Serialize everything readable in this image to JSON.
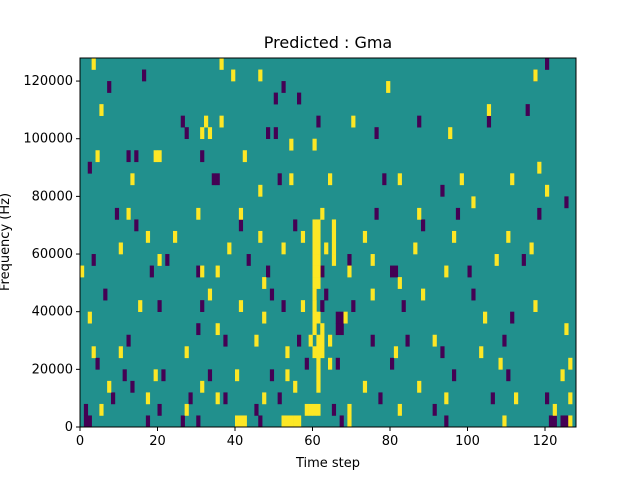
{
  "chart_data": {
    "type": "heatmap",
    "title": "Predicted : Gma",
    "xlabel": "Time step",
    "ylabel": "Frequency (Hz)",
    "xlim": [
      0,
      128
    ],
    "ylim": [
      0,
      128000
    ],
    "xticks": [
      0,
      20,
      40,
      60,
      80,
      100,
      120
    ],
    "yticks": [
      0,
      20000,
      40000,
      60000,
      80000,
      100000,
      120000
    ],
    "x_bins": 128,
    "y_bin_size": 4000,
    "grid": false,
    "colors": {
      "background": "#21908d",
      "high": "#fde725",
      "low": "#440154"
    },
    "high_cells": [
      [
        3,
        124000
      ],
      [
        36,
        124000
      ],
      [
        39,
        120000
      ],
      [
        46,
        120000
      ],
      [
        117,
        120000
      ],
      [
        32,
        104000
      ],
      [
        36,
        104000
      ],
      [
        70,
        104000
      ],
      [
        79,
        116000
      ],
      [
        105,
        108000
      ],
      [
        5,
        108000
      ],
      [
        31,
        100000
      ],
      [
        33,
        100000
      ],
      [
        60,
        96000
      ],
      [
        95,
        100000
      ],
      [
        4,
        92000
      ],
      [
        19,
        92000
      ],
      [
        20,
        92000
      ],
      [
        42,
        92000
      ],
      [
        54,
        96000
      ],
      [
        13,
        84000
      ],
      [
        46,
        80000
      ],
      [
        54,
        84000
      ],
      [
        64,
        84000
      ],
      [
        82,
        84000
      ],
      [
        98,
        84000
      ],
      [
        111,
        84000
      ],
      [
        118,
        88000
      ],
      [
        12,
        72000
      ],
      [
        30,
        72000
      ],
      [
        41,
        72000
      ],
      [
        62,
        72000
      ],
      [
        87,
        72000
      ],
      [
        101,
        76000
      ],
      [
        120,
        80000
      ],
      [
        10,
        60000
      ],
      [
        17,
        64000
      ],
      [
        24,
        64000
      ],
      [
        38,
        60000
      ],
      [
        46,
        64000
      ],
      [
        52,
        60000
      ],
      [
        57,
        64000
      ],
      [
        63,
        60000
      ],
      [
        73,
        64000
      ],
      [
        86,
        60000
      ],
      [
        96,
        64000
      ],
      [
        110,
        64000
      ],
      [
        116,
        60000
      ],
      [
        0,
        52000
      ],
      [
        20,
        56000
      ],
      [
        31,
        52000
      ],
      [
        35,
        52000
      ],
      [
        47,
        48000
      ],
      [
        60,
        56000
      ],
      [
        69,
        52000
      ],
      [
        75,
        56000
      ],
      [
        82,
        48000
      ],
      [
        94,
        52000
      ],
      [
        107,
        56000
      ],
      [
        2,
        36000
      ],
      [
        15,
        40000
      ],
      [
        33,
        44000
      ],
      [
        41,
        40000
      ],
      [
        47,
        36000
      ],
      [
        57,
        40000
      ],
      [
        68,
        36000
      ],
      [
        75,
        44000
      ],
      [
        88,
        44000
      ],
      [
        104,
        36000
      ],
      [
        117,
        40000
      ],
      [
        3,
        24000
      ],
      [
        10,
        24000
      ],
      [
        27,
        24000
      ],
      [
        35,
        32000
      ],
      [
        45,
        28000
      ],
      [
        53,
        24000
      ],
      [
        64,
        28000
      ],
      [
        81,
        24000
      ],
      [
        91,
        28000
      ],
      [
        103,
        24000
      ],
      [
        125,
        32000
      ],
      [
        7,
        12000
      ],
      [
        19,
        16000
      ],
      [
        31,
        12000
      ],
      [
        40,
        16000
      ],
      [
        53,
        16000
      ],
      [
        64,
        20000
      ],
      [
        73,
        12000
      ],
      [
        87,
        12000
      ],
      [
        108,
        20000
      ],
      [
        124,
        16000
      ],
      [
        5,
        4000
      ],
      [
        17,
        8000
      ],
      [
        27,
        4000
      ],
      [
        35,
        8000
      ],
      [
        47,
        8000
      ],
      [
        55,
        12000
      ],
      [
        82,
        4000
      ],
      [
        94,
        8000
      ],
      [
        109,
        0
      ],
      [
        112,
        8000
      ],
      [
        122,
        4000
      ],
      [
        40,
        0
      ],
      [
        41,
        0
      ],
      [
        42,
        0
      ],
      [
        52,
        0
      ],
      [
        53,
        0
      ],
      [
        54,
        0
      ],
      [
        55,
        0
      ],
      [
        56,
        0
      ],
      [
        61,
        48000
      ],
      [
        61,
        36000
      ],
      [
        61,
        28000
      ],
      [
        61,
        20000
      ],
      [
        61,
        16000
      ],
      [
        61,
        12000
      ],
      [
        61,
        4000
      ],
      [
        62,
        32000
      ],
      [
        62,
        28000
      ],
      [
        62,
        24000
      ],
      [
        58,
        4000
      ],
      [
        59,
        4000
      ],
      [
        60,
        4000
      ],
      [
        59,
        28000
      ],
      [
        60,
        24000
      ],
      [
        61,
        24000
      ],
      [
        126,
        20000
      ],
      [
        126,
        8000
      ],
      [
        126,
        0
      ]
    ],
    "high_runs": [
      {
        "x": 60,
        "y_from": 32000,
        "y_to": 68000
      },
      {
        "x": 61,
        "y_from": 52000,
        "y_to": 68000
      },
      {
        "x": 65,
        "y_from": 56000,
        "y_to": 68000
      },
      {
        "x": 69,
        "y_from": 0,
        "y_to": 4000
      }
    ],
    "low_cells": [
      [
        1,
        0
      ],
      [
        2,
        0
      ],
      [
        1,
        4000
      ],
      [
        13,
        12000
      ],
      [
        17,
        0
      ],
      [
        26,
        0
      ],
      [
        30,
        0
      ],
      [
        45,
        4000
      ],
      [
        46,
        0
      ],
      [
        67,
        0
      ],
      [
        94,
        0
      ],
      [
        124,
        0
      ],
      [
        125,
        0
      ],
      [
        121,
        0
      ],
      [
        122,
        0
      ],
      [
        26,
        104000
      ],
      [
        50,
        112000
      ],
      [
        48,
        100000
      ],
      [
        52,
        116000
      ],
      [
        27,
        100000
      ],
      [
        51,
        84000
      ],
      [
        115,
        108000
      ],
      [
        117,
        120000
      ],
      [
        120,
        124000
      ],
      [
        12,
        92000
      ],
      [
        14,
        92000
      ],
      [
        2,
        88000
      ],
      [
        34,
        84000
      ],
      [
        35,
        84000
      ],
      [
        78,
        84000
      ],
      [
        93,
        80000
      ],
      [
        7,
        116000
      ],
      [
        16,
        120000
      ],
      [
        31,
        92000
      ],
      [
        50,
        100000
      ],
      [
        56,
        112000
      ],
      [
        61,
        104000
      ],
      [
        76,
        100000
      ],
      [
        87,
        104000
      ],
      [
        105,
        104000
      ],
      [
        9,
        72000
      ],
      [
        14,
        68000
      ],
      [
        41,
        68000
      ],
      [
        55,
        68000
      ],
      [
        76,
        72000
      ],
      [
        88,
        68000
      ],
      [
        97,
        72000
      ],
      [
        118,
        72000
      ],
      [
        125,
        76000
      ],
      [
        3,
        56000
      ],
      [
        18,
        52000
      ],
      [
        22,
        56000
      ],
      [
        30,
        52000
      ],
      [
        43,
        56000
      ],
      [
        48,
        52000
      ],
      [
        62,
        52000
      ],
      [
        69,
        56000
      ],
      [
        80,
        52000
      ],
      [
        81,
        52000
      ],
      [
        100,
        52000
      ],
      [
        114,
        56000
      ],
      [
        6,
        44000
      ],
      [
        20,
        40000
      ],
      [
        31,
        40000
      ],
      [
        49,
        44000
      ],
      [
        52,
        40000
      ],
      [
        63,
        44000
      ],
      [
        70,
        40000
      ],
      [
        83,
        40000
      ],
      [
        101,
        44000
      ],
      [
        111,
        36000
      ],
      [
        12,
        28000
      ],
      [
        30,
        32000
      ],
      [
        37,
        28000
      ],
      [
        56,
        28000
      ],
      [
        66,
        32000
      ],
      [
        67,
        32000
      ],
      [
        75,
        28000
      ],
      [
        84,
        28000
      ],
      [
        93,
        24000
      ],
      [
        109,
        28000
      ],
      [
        4,
        20000
      ],
      [
        11,
        16000
      ],
      [
        21,
        16000
      ],
      [
        33,
        16000
      ],
      [
        49,
        16000
      ],
      [
        58,
        20000
      ],
      [
        66,
        20000
      ],
      [
        80,
        20000
      ],
      [
        96,
        16000
      ],
      [
        110,
        16000
      ],
      [
        8,
        8000
      ],
      [
        20,
        4000
      ],
      [
        28,
        8000
      ],
      [
        37,
        8000
      ],
      [
        51,
        8000
      ],
      [
        65,
        4000
      ],
      [
        77,
        8000
      ],
      [
        91,
        4000
      ],
      [
        106,
        8000
      ],
      [
        120,
        8000
      ],
      [
        66,
        36000
      ],
      [
        67,
        36000
      ],
      [
        60,
        44000
      ],
      [
        62,
        40000
      ]
    ]
  }
}
